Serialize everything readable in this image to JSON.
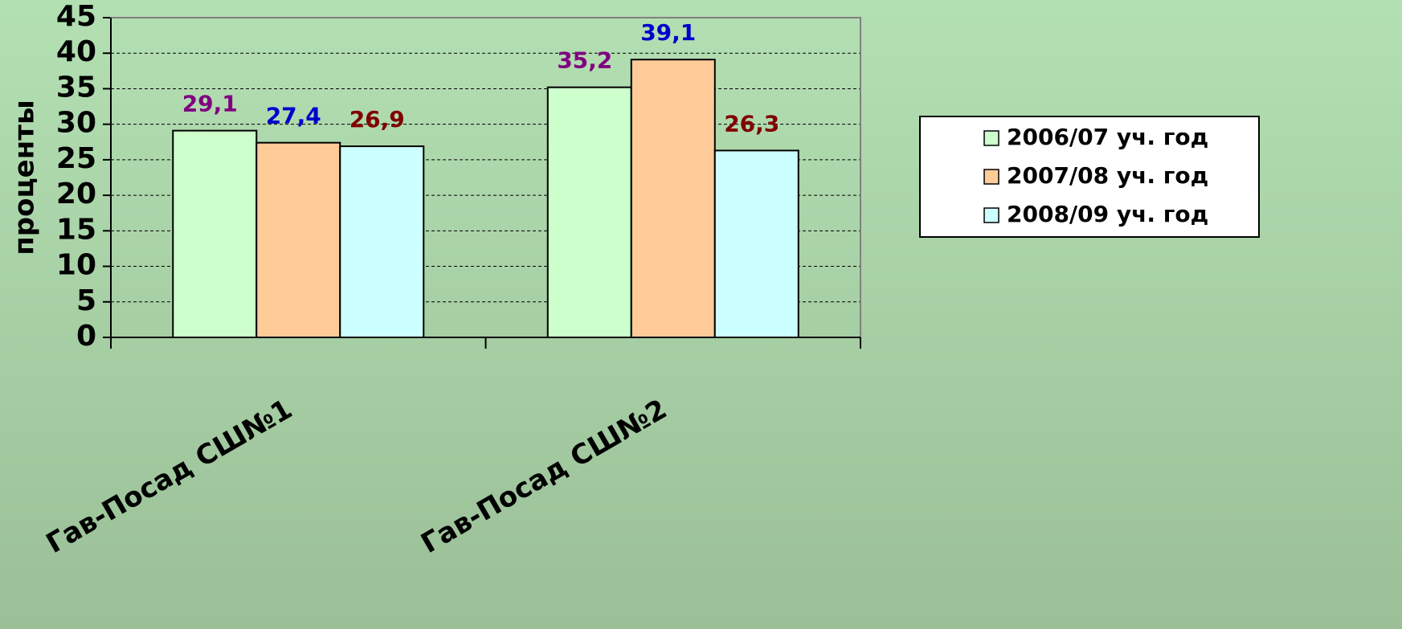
{
  "chart_data": {
    "type": "bar",
    "y_label": "проценты",
    "categories": [
      "Гав-Посад СШ№1",
      "Гав-Посад СШ№2"
    ],
    "series": [
      {
        "name": "2006/07 уч. год",
        "color": "#ccffcc",
        "label_color": "#800080",
        "values": [
          29.1,
          35.2
        ],
        "value_labels": [
          "29,1",
          "35,2"
        ]
      },
      {
        "name": "2007/08 уч. год",
        "color": "#ffcc99",
        "label_color": "#0000cc",
        "values": [
          27.4,
          39.1
        ],
        "value_labels": [
          "27,4",
          "39,1"
        ]
      },
      {
        "name": "2008/09 уч. год",
        "color": "#ccffff",
        "label_color": "#800000",
        "values": [
          26.9,
          26.3
        ],
        "value_labels": [
          "26,9",
          "26,3"
        ]
      }
    ],
    "ylim": [
      0,
      45
    ],
    "yticks": [
      0,
      5,
      10,
      15,
      20,
      25,
      30,
      35,
      40,
      45
    ],
    "grid": true,
    "legend": "right"
  }
}
